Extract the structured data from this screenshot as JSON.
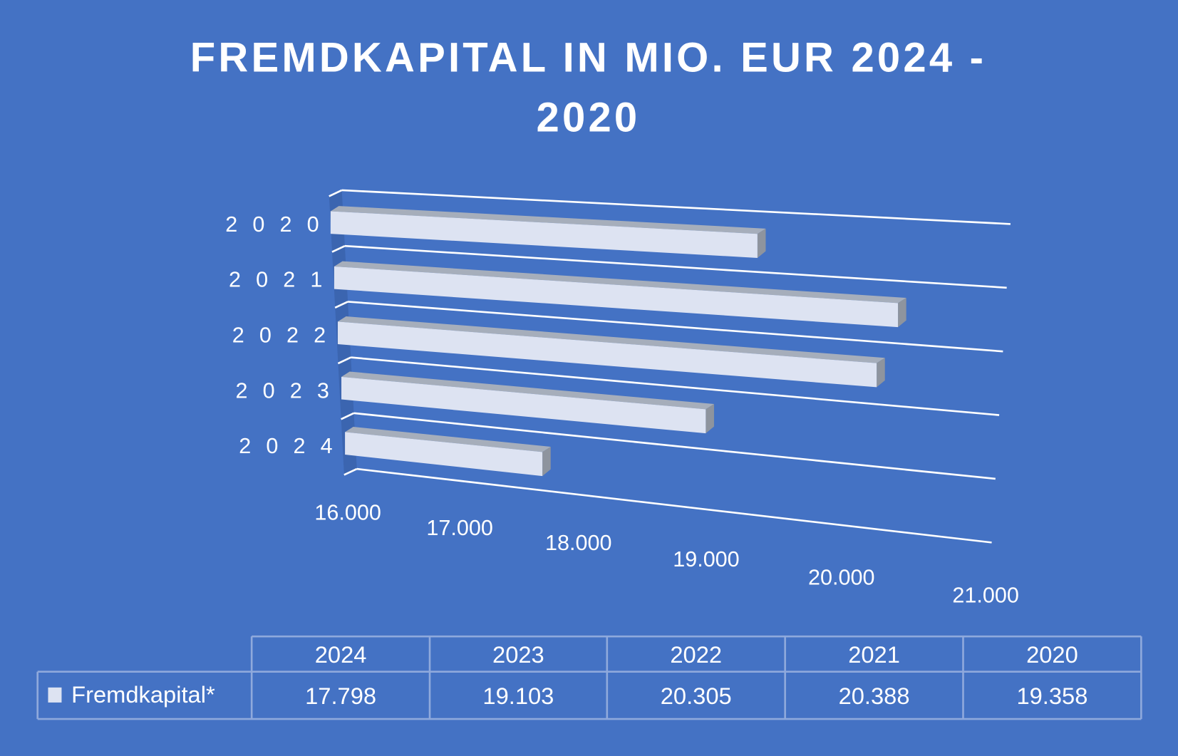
{
  "chart_data": {
    "type": "bar",
    "orientation": "horizontal",
    "style": "3d",
    "title_lines": [
      "FREMDKAPITAL IN MIO. EUR 2024 -",
      "2020"
    ],
    "categories": [
      "2020",
      "2021",
      "2022",
      "2023",
      "2024"
    ],
    "category_labels": [
      "2 0 2 0",
      "2 0 2 1",
      "2 0 2 2",
      "2 0 2 3",
      "2 0 2 4"
    ],
    "series": [
      {
        "name": "Fremdkapital*",
        "values": [
          19358,
          20388,
          20305,
          19103,
          17798
        ]
      }
    ],
    "xlim": [
      16000,
      21000
    ],
    "x_ticks": [
      16000,
      17000,
      18000,
      19000,
      20000,
      21000
    ],
    "x_tick_labels": [
      "16.000",
      "17.000",
      "18.000",
      "19.000",
      "20.000",
      "21.000"
    ],
    "grid": true,
    "legend": "data-table",
    "data_table": {
      "columns": [
        "2024",
        "2023",
        "2022",
        "2021",
        "2020"
      ],
      "row_label": "Fremdkapital*",
      "values": [
        "17.798",
        "19.103",
        "20.305",
        "20.388",
        "19.358"
      ]
    },
    "colors": {
      "background": "#4472C4",
      "bar_front": "#DDE3F2",
      "bar_top": "#A6AEBB",
      "bar_end": "#8E949E",
      "axis_wall": "#3B65B0",
      "gridline": "#FFFFFF",
      "table_border": "#8FA9DC"
    }
  }
}
